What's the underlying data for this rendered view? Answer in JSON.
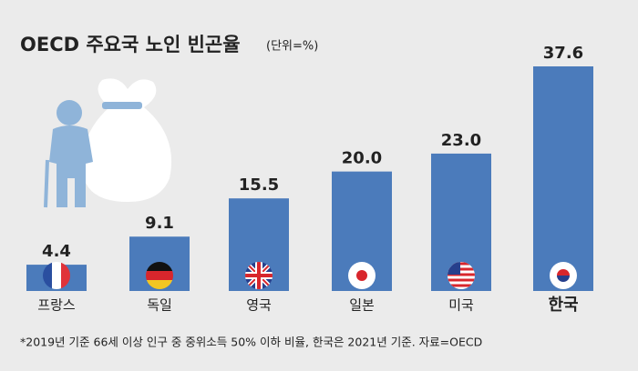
{
  "chart_data": {
    "type": "bar",
    "title": "OECD 주요국 노인 빈곤율",
    "subtitle": "(단위=%)",
    "categories": [
      "프랑스",
      "독일",
      "영국",
      "일본",
      "미국",
      "한국"
    ],
    "values": [
      4.4,
      9.1,
      15.5,
      20.0,
      23.0,
      37.6
    ],
    "value_labels": [
      "4.4",
      "9.1",
      "15.5",
      "20.0",
      "23.0",
      "37.6"
    ],
    "color": "#4b7bbb",
    "footnote": "*2019년 기준 66세 이상 인구 중 중위소득 50% 이하 비율, 한국은 2021년 기준. 자료=OECD"
  }
}
